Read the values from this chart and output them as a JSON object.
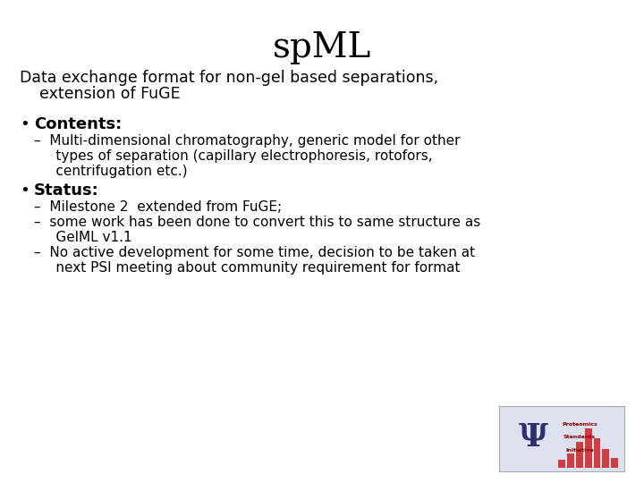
{
  "title": "spML",
  "background_color": "#ffffff",
  "title_fontsize": 28,
  "title_color": "#000000",
  "title_font": "serif",
  "subtitle_line1": "Data exchange format for non-gel based separations,",
  "subtitle_line2": "    extension of FuGE",
  "subtitle_fontsize": 12.5,
  "subtitle_color": "#000000",
  "bullet1_bold": "Contents:",
  "bullet1_fontsize": 13,
  "sub1_line1": "–  Multi-dimensional chromatography, generic model for other",
  "sub1_line2": "     types of separation (capillary electrophoresis, rotofors,",
  "sub1_line3": "     centrifugation etc.)",
  "sub1_fontsize": 11,
  "bullet2_bold": "Status:",
  "bullet2_fontsize": 13,
  "sub2a": "–  Milestone 2  extended from FuGE;",
  "sub2b_line1": "–  some work has been done to convert this to same structure as",
  "sub2b_line2": "     GelML v1.1",
  "sub2c_line1": "–  No active development for some time, decision to be taken at",
  "sub2c_line2": "     next PSI meeting about community requirement for format",
  "sub2_fontsize": 11,
  "logo_bg": "#dde0ee",
  "logo_border": "#aaaaaa",
  "psi_color": "#2d3070",
  "psi_text_color": "#8b0000"
}
